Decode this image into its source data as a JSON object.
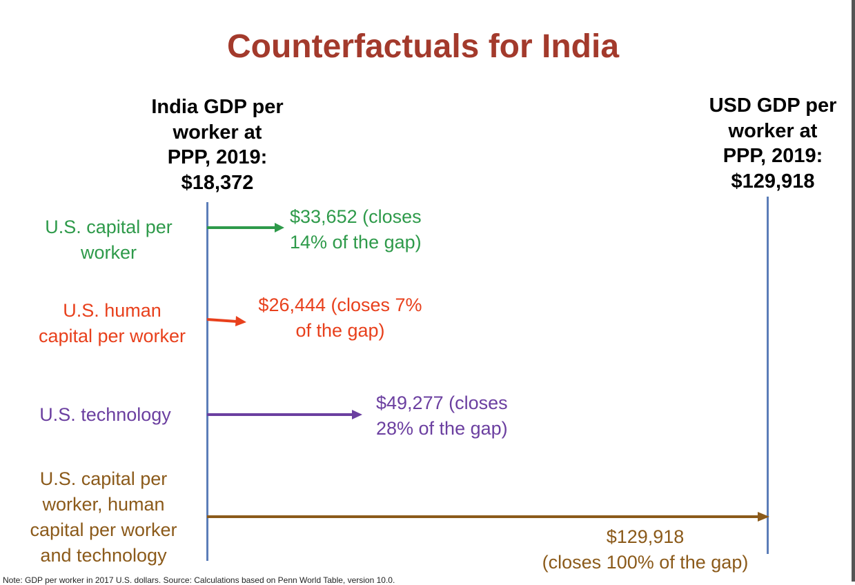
{
  "title": "Counterfactuals for India",
  "colors": {
    "title": "#A33A2C",
    "axis_line": "#5B7DB8",
    "capital": "#2E9A4A",
    "human_capital": "#E8401C",
    "technology": "#6B3FA0",
    "all": "#8B5A1A"
  },
  "left_endpoint": {
    "lines": [
      "India GDP per",
      "worker at",
      "PPP, 2019:",
      "$18,372"
    ]
  },
  "right_endpoint": {
    "lines": [
      "USD GDP per",
      "worker at",
      "PPP, 2019:",
      "$129,918"
    ]
  },
  "counterfactuals": [
    {
      "factor_lines": [
        "U.S. capital per",
        "worker"
      ],
      "result_lines": [
        "$33,652 (closes",
        "14% of the gap)"
      ],
      "value": 33652,
      "gap_closed_pct": 14
    },
    {
      "factor_lines": [
        "U.S. human",
        "capital per worker"
      ],
      "result_lines": [
        "$26,444 (closes 7%",
        "of the gap)"
      ],
      "value": 26444,
      "gap_closed_pct": 7
    },
    {
      "factor_lines": [
        "U.S. technology"
      ],
      "result_lines": [
        "$49,277 (closes",
        "28% of the gap)"
      ],
      "value": 49277,
      "gap_closed_pct": 28
    },
    {
      "factor_lines": [
        "U.S. capital per",
        "worker, human",
        "capital per worker",
        "and technology"
      ],
      "result_lines": [
        "$129,918",
        "(closes 100% of the gap)"
      ],
      "value": 129918,
      "gap_closed_pct": 100
    }
  ],
  "note": "Note: GDP per worker in 2017 U.S. dollars. Source: Calculations based on Penn World Table, version 10.0."
}
